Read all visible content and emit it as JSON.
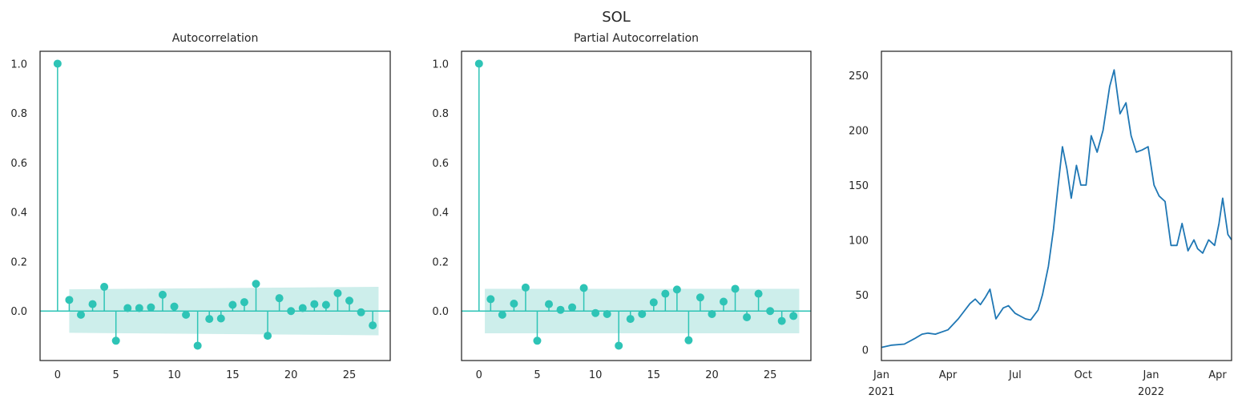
{
  "suptitle": "SOL",
  "chart_data": [
    {
      "type": "stem",
      "title": "Autocorrelation",
      "color": "#2ec4b6",
      "band_color": "#cdeeeb",
      "lags": [
        0,
        1,
        2,
        3,
        4,
        5,
        6,
        7,
        8,
        9,
        10,
        11,
        12,
        13,
        14,
        15,
        16,
        17,
        18,
        19,
        20,
        21,
        22,
        23,
        24,
        25,
        26,
        27
      ],
      "values": [
        1.0,
        0.045,
        -0.015,
        0.028,
        0.098,
        -0.12,
        0.012,
        0.012,
        0.015,
        0.066,
        0.018,
        -0.015,
        -0.14,
        -0.032,
        -0.03,
        0.025,
        0.036,
        0.11,
        -0.1,
        0.052,
        0.0,
        0.012,
        0.028,
        0.025,
        0.072,
        0.042,
        -0.005,
        -0.058
      ],
      "confint": [
        [
          1,
          0.088
        ],
        [
          27.5,
          0.098
        ]
      ],
      "xlim": [
        -1.5,
        28.5
      ],
      "ylim": [
        -0.2,
        1.05
      ],
      "xticks": [
        0,
        5,
        10,
        15,
        20,
        25
      ],
      "yticks": [
        0.0,
        0.2,
        0.4,
        0.6,
        0.8,
        1.0
      ],
      "ytick_labels": [
        "0.0",
        "0.2",
        "0.4",
        "0.6",
        "0.8",
        "1.0"
      ],
      "xlabel": "",
      "ylabel": ""
    },
    {
      "type": "stem",
      "title": "Partial Autocorrelation",
      "color": "#2ec4b6",
      "band_color": "#cdeeeb",
      "lags": [
        0,
        1,
        2,
        3,
        4,
        5,
        6,
        7,
        8,
        9,
        10,
        11,
        12,
        13,
        14,
        15,
        16,
        17,
        18,
        19,
        20,
        21,
        22,
        23,
        24,
        25,
        26,
        27
      ],
      "values": [
        1.0,
        0.048,
        -0.015,
        0.03,
        0.095,
        -0.12,
        0.028,
        0.005,
        0.015,
        0.093,
        -0.008,
        -0.012,
        -0.14,
        -0.032,
        -0.012,
        0.035,
        0.07,
        0.087,
        -0.118,
        0.055,
        -0.012,
        0.038,
        0.09,
        -0.025,
        0.07,
        0.0,
        -0.04,
        -0.02
      ],
      "confint": [
        [
          0.5,
          0.09
        ],
        [
          27.5,
          0.09
        ]
      ],
      "xlim": [
        -1.5,
        28.5
      ],
      "ylim": [
        -0.2,
        1.05
      ],
      "xticks": [
        0,
        5,
        10,
        15,
        20,
        25
      ],
      "yticks": [
        0.0,
        0.2,
        0.4,
        0.6,
        0.8,
        1.0
      ],
      "ytick_labels": [
        "0.0",
        "0.2",
        "0.4",
        "0.6",
        "0.8",
        "1.0"
      ],
      "xlabel": "",
      "ylabel": ""
    },
    {
      "type": "line",
      "title": "",
      "color": "#1f77b4",
      "x": [
        "2021-01-01",
        "2021-01-15",
        "2021-02-01",
        "2021-02-15",
        "2021-02-25",
        "2021-03-05",
        "2021-03-15",
        "2021-04-01",
        "2021-04-15",
        "2021-05-01",
        "2021-05-08",
        "2021-05-15",
        "2021-05-22",
        "2021-05-28",
        "2021-06-05",
        "2021-06-15",
        "2021-06-22",
        "2021-07-01",
        "2021-07-15",
        "2021-07-22",
        "2021-08-01",
        "2021-08-07",
        "2021-08-15",
        "2021-08-22",
        "2021-08-28",
        "2021-09-03",
        "2021-09-09",
        "2021-09-15",
        "2021-09-22",
        "2021-09-28",
        "2021-10-05",
        "2021-10-12",
        "2021-10-20",
        "2021-10-28",
        "2021-11-06",
        "2021-11-12",
        "2021-11-20",
        "2021-11-28",
        "2021-12-05",
        "2021-12-12",
        "2021-12-20",
        "2021-12-28",
        "2022-01-05",
        "2022-01-12",
        "2022-01-20",
        "2022-01-28",
        "2022-02-05",
        "2022-02-12",
        "2022-02-20",
        "2022-02-28",
        "2022-03-05",
        "2022-03-12",
        "2022-03-20",
        "2022-03-28",
        "2022-04-03",
        "2022-04-08",
        "2022-04-15",
        "2022-04-20"
      ],
      "y": [
        2,
        4,
        5,
        10,
        14,
        15,
        14,
        18,
        28,
        42,
        46,
        41,
        48,
        55,
        28,
        38,
        40,
        33,
        28,
        27,
        36,
        50,
        76,
        110,
        148,
        185,
        165,
        138,
        168,
        150,
        150,
        195,
        180,
        200,
        240,
        255,
        215,
        225,
        195,
        180,
        182,
        185,
        150,
        140,
        135,
        95,
        95,
        115,
        90,
        100,
        92,
        88,
        100,
        95,
        115,
        138,
        105,
        100
      ],
      "xlim": [
        "2021-01-01",
        "2022-04-20"
      ],
      "xticks": [
        "2021-01-01",
        "2021-04-01",
        "2021-07-01",
        "2021-10-01",
        "2022-01-01",
        "2022-04-01"
      ],
      "xtick_labels": [
        [
          "Jan",
          "2021"
        ],
        [
          "Apr",
          ""
        ],
        [
          "Jul",
          ""
        ],
        [
          "Oct",
          ""
        ],
        [
          "Jan",
          "2022"
        ],
        [
          "Apr",
          ""
        ]
      ],
      "ylim": [
        -10,
        272
      ],
      "yticks": [
        0,
        50,
        100,
        150,
        200,
        250
      ],
      "ytick_labels": [
        "0",
        "50",
        "100",
        "150",
        "200",
        "250"
      ],
      "xlabel": "",
      "ylabel": ""
    }
  ]
}
